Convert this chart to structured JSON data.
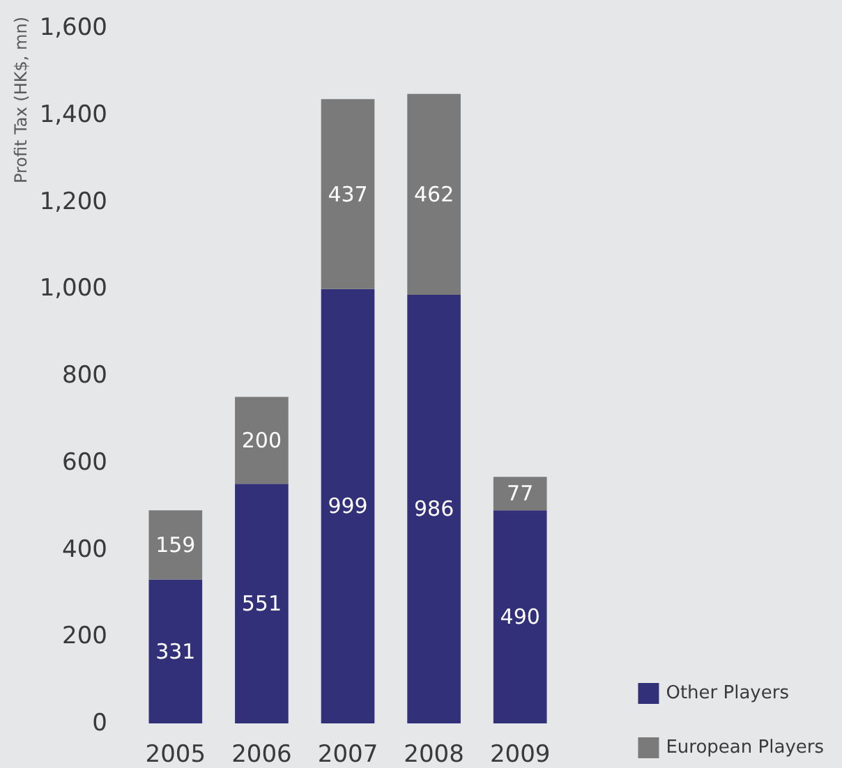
{
  "chart_data": {
    "type": "bar",
    "ylabel": "Profit Tax (HK$, mn)",
    "categories": [
      "2005",
      "2006",
      "2007",
      "2008",
      "2009"
    ],
    "series": [
      {
        "name": "Other Players",
        "color": "#33307a",
        "values": [
          331,
          551,
          999,
          986,
          490
        ]
      },
      {
        "name": "European Players",
        "color": "#7a7a7a",
        "values": [
          159,
          200,
          437,
          462,
          77
        ]
      }
    ],
    "stacked": true,
    "data_labels": true,
    "ylim": [
      0,
      1600
    ],
    "yticks": [
      0,
      200,
      400,
      600,
      800,
      {
        "value": 1000,
        "label": "1,000"
      },
      {
        "value": 1200,
        "label": "1,200"
      },
      {
        "value": 1400,
        "label": "1,400"
      },
      {
        "value": 1600,
        "label": "1,600"
      }
    ],
    "grid": false,
    "legend": "bottom right"
  }
}
